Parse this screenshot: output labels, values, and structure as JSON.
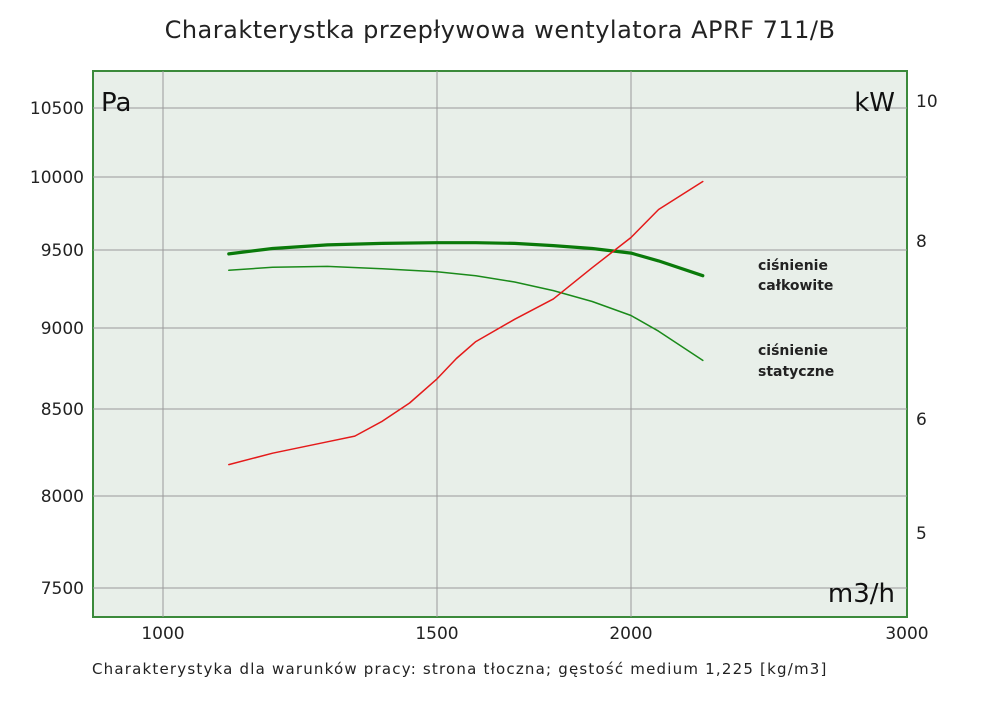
{
  "title": "Charakterystka przepływowa wentylatora APRF 711/B",
  "caption": "Charakterystyka dla warunków pracy: strona tłoczna; gęstość medium 1,225 [kg/m3]",
  "colors": {
    "plot_bg": "#e8efe9",
    "frame": "#3b8a3b",
    "grid": "#9a9a9a",
    "total": "#0a7a0a",
    "static": "#1a8a1a",
    "power": "#e41a1a"
  },
  "chart_data": {
    "type": "line",
    "title": "Charakterystka przepływowa wentylatora APRF 711/B",
    "x_unit": "m3/h",
    "y_left_unit": "Pa",
    "y_right_unit": "kW",
    "x_ticks": [
      "1000",
      "1500",
      "2000",
      "3000"
    ],
    "y_left_ticks": [
      "10500",
      "10000",
      "9500",
      "9000",
      "8500",
      "8000",
      "7500"
    ],
    "y_right_ticks": [
      "10",
      "8",
      "6",
      "5"
    ],
    "annotations": {
      "total": [
        "ciśnienie",
        "całkowite"
      ],
      "static": [
        "ciśnienie",
        "statyczne"
      ]
    },
    "series": [
      {
        "name": "ciśnienie całkowite",
        "axis": "left",
        "x": [
          1120,
          1200,
          1300,
          1400,
          1500,
          1600,
          1700,
          1800,
          1900,
          2000,
          2100,
          2260
        ],
        "values": [
          9475,
          9510,
          9535,
          9545,
          9550,
          9550,
          9545,
          9530,
          9510,
          9480,
          9430,
          9335
        ]
      },
      {
        "name": "ciśnienie statyczne",
        "axis": "left",
        "x": [
          1120,
          1200,
          1300,
          1400,
          1500,
          1600,
          1700,
          1800,
          1900,
          2000,
          2100,
          2260
        ],
        "values": [
          9370,
          9390,
          9395,
          9380,
          9360,
          9335,
          9295,
          9240,
          9170,
          9080,
          8980,
          8800
        ]
      },
      {
        "name": "moc",
        "axis": "right",
        "x": [
          1120,
          1200,
          1300,
          1350,
          1400,
          1450,
          1500,
          1550,
          1600,
          1700,
          1800,
          1900,
          2000,
          2100,
          2260
        ],
        "values": [
          5.6,
          5.7,
          5.8,
          5.85,
          5.98,
          6.18,
          6.45,
          6.68,
          6.87,
          7.12,
          7.35,
          7.7,
          8.05,
          8.45,
          8.85
        ]
      }
    ]
  }
}
